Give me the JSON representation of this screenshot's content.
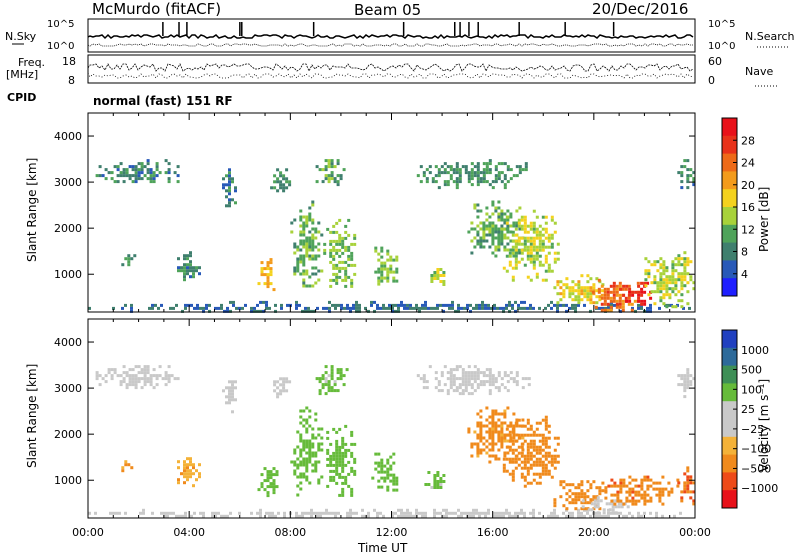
{
  "header": {
    "station": "McMurdo (fitACF)",
    "beam": "Beam 05",
    "date": "20/Dec/2016"
  },
  "top_panels": {
    "nsky_label": "N.Sky",
    "nsearch_label": "N.Search",
    "nsky_ticks": [
      "10^5",
      "10^0"
    ],
    "nsearch_ticks": [
      "10^5",
      "10^0"
    ],
    "freq_label": "Freq.",
    "freq_unit": "[MHz]",
    "freq_ticks": [
      "18",
      "8"
    ],
    "nave_label": "Nave",
    "nave_ticks": [
      "60",
      "0"
    ],
    "cpid_label": "CPID",
    "cpid_text": "normal (fast) 151 RF"
  },
  "colors": {
    "power_scale": [
      "#1f1fff",
      "#2859b8",
      "#3f7f6e",
      "#4fa35a",
      "#a8d23a",
      "#f4d21e",
      "#f39b1c",
      "#ee6a18",
      "#e8321a",
      "#e8111a"
    ],
    "velocity_scale": [
      "#e8111a",
      "#ee4a18",
      "#f08a1c",
      "#f4b238",
      "#c9c9c9",
      "#c9c9c9",
      "#66bb3a",
      "#3e8f56",
      "#2d6a9a",
      "#2040c0"
    ]
  },
  "chart_data": [
    {
      "type": "heatmap",
      "name": "power",
      "title": "",
      "xlabel": "Time UT",
      "ylabel": "Slant Range [km]",
      "x_ticks": [
        "00:00",
        "04:00",
        "08:00",
        "12:00",
        "16:00",
        "20:00",
        "00:00"
      ],
      "y_ticks": [
        1000,
        2000,
        3000,
        4000
      ],
      "xlim_hours": [
        0,
        24
      ],
      "ylim_km": [
        180,
        4500
      ],
      "colorbar": {
        "label": "Power [dB]",
        "ticks": [
          "28",
          "24",
          "20",
          "16",
          "12",
          "8",
          "4"
        ],
        "range": [
          0,
          30
        ]
      },
      "regions": [
        {
          "t0": 0.0,
          "t1": 24.0,
          "r0": 200,
          "r1": 420,
          "value": 6
        },
        {
          "t0": 0.3,
          "t1": 3.6,
          "r0": 3000,
          "r1": 3500,
          "value": 8
        },
        {
          "t0": 1.2,
          "t1": 1.8,
          "r0": 1200,
          "r1": 1500,
          "value": 9
        },
        {
          "t0": 3.4,
          "t1": 4.4,
          "r0": 900,
          "r1": 1500,
          "value": 8
        },
        {
          "t0": 5.3,
          "t1": 5.8,
          "r0": 2500,
          "r1": 3300,
          "value": 7
        },
        {
          "t0": 6.7,
          "t1": 7.4,
          "r0": 650,
          "r1": 1350,
          "value": 18
        },
        {
          "t0": 7.2,
          "t1": 8.0,
          "r0": 2800,
          "r1": 3300,
          "value": 9
        },
        {
          "t0": 8.0,
          "t1": 9.2,
          "r0": 700,
          "r1": 2600,
          "value": 11
        },
        {
          "t0": 9.0,
          "t1": 10.2,
          "r0": 2900,
          "r1": 3500,
          "value": 10
        },
        {
          "t0": 9.3,
          "t1": 10.6,
          "r0": 650,
          "r1": 2200,
          "value": 12
        },
        {
          "t0": 11.2,
          "t1": 12.2,
          "r0": 750,
          "r1": 1600,
          "value": 12
        },
        {
          "t0": 13.3,
          "t1": 14.1,
          "r0": 800,
          "r1": 1200,
          "value": 14
        },
        {
          "t0": 13.0,
          "t1": 17.4,
          "r0": 2900,
          "r1": 3500,
          "value": 9
        },
        {
          "t0": 15.0,
          "t1": 17.2,
          "r0": 1400,
          "r1": 2600,
          "value": 11
        },
        {
          "t0": 16.4,
          "t1": 18.6,
          "r0": 900,
          "r1": 2400,
          "value": 14
        },
        {
          "t0": 18.4,
          "t1": 20.5,
          "r0": 350,
          "r1": 1000,
          "value": 16
        },
        {
          "t0": 19.8,
          "t1": 21.8,
          "r0": 200,
          "r1": 900,
          "value": 22
        },
        {
          "t0": 21.0,
          "t1": 22.2,
          "r0": 350,
          "r1": 900,
          "value": 27
        },
        {
          "t0": 22.0,
          "t1": 24.0,
          "r0": 300,
          "r1": 1500,
          "value": 14
        },
        {
          "t0": 23.3,
          "t1": 24.0,
          "r0": 2800,
          "r1": 3500,
          "value": 8
        }
      ]
    },
    {
      "type": "heatmap",
      "name": "velocity",
      "title": "",
      "xlabel": "Time UT",
      "ylabel": "Slant Range [km]",
      "x_ticks": [
        "00:00",
        "04:00",
        "08:00",
        "12:00",
        "16:00",
        "20:00",
        "00:00"
      ],
      "y_ticks": [
        1000,
        2000,
        3000,
        4000
      ],
      "xlim_hours": [
        0,
        24
      ],
      "ylim_km": [
        180,
        4500
      ],
      "colorbar": {
        "label": "Velocity [m s⁻¹]",
        "ticks": [
          "1000",
          "500",
          "100",
          "25",
          "−25",
          "−100",
          "−500",
          "−1000"
        ],
        "levels": [
          -1000,
          -500,
          -100,
          -25,
          25,
          100,
          500,
          1000
        ]
      },
      "regions": [
        {
          "t0": 0.0,
          "t1": 24.0,
          "r0": 200,
          "r1": 380,
          "value": 0
        },
        {
          "t0": 0.3,
          "t1": 3.6,
          "r0": 3000,
          "r1": 3500,
          "value": 0
        },
        {
          "t0": 1.2,
          "t1": 1.8,
          "r0": 1200,
          "r1": 1500,
          "value": -120
        },
        {
          "t0": 3.4,
          "t1": 4.4,
          "r0": 900,
          "r1": 1500,
          "value": -80
        },
        {
          "t0": 5.3,
          "t1": 5.8,
          "r0": 2500,
          "r1": 3300,
          "value": 60
        },
        {
          "t0": 6.7,
          "t1": 7.5,
          "r0": 650,
          "r1": 1350,
          "value": 200
        },
        {
          "t0": 7.2,
          "t1": 8.0,
          "r0": 2800,
          "r1": 3300,
          "value": 0
        },
        {
          "t0": 8.0,
          "t1": 9.2,
          "r0": 700,
          "r1": 2600,
          "value": 250
        },
        {
          "t0": 9.0,
          "t1": 10.2,
          "r0": 2900,
          "r1": 3500,
          "value": 150
        },
        {
          "t0": 9.3,
          "t1": 10.6,
          "r0": 650,
          "r1": 2200,
          "value": 250
        },
        {
          "t0": 11.2,
          "t1": 12.2,
          "r0": 750,
          "r1": 1600,
          "value": 220
        },
        {
          "t0": 13.3,
          "t1": 14.1,
          "r0": 800,
          "r1": 1200,
          "value": 150
        },
        {
          "t0": 13.0,
          "t1": 17.4,
          "r0": 2900,
          "r1": 3500,
          "value": 0
        },
        {
          "t0": 15.0,
          "t1": 17.2,
          "r0": 1400,
          "r1": 2600,
          "value": -150
        },
        {
          "t0": 16.4,
          "t1": 18.6,
          "r0": 900,
          "r1": 2400,
          "value": -350
        },
        {
          "t0": 18.4,
          "t1": 20.5,
          "r0": 350,
          "r1": 1000,
          "value": -250
        },
        {
          "t0": 19.4,
          "t1": 21.5,
          "r0": 300,
          "r1": 650,
          "value": 60
        },
        {
          "t0": 20.3,
          "t1": 23.3,
          "r0": 450,
          "r1": 1100,
          "value": -400
        },
        {
          "t0": 23.3,
          "t1": 24.0,
          "r0": 500,
          "r1": 1300,
          "value": -500
        },
        {
          "t0": 23.3,
          "t1": 24.0,
          "r0": 2800,
          "r1": 3500,
          "value": 0
        }
      ]
    }
  ]
}
